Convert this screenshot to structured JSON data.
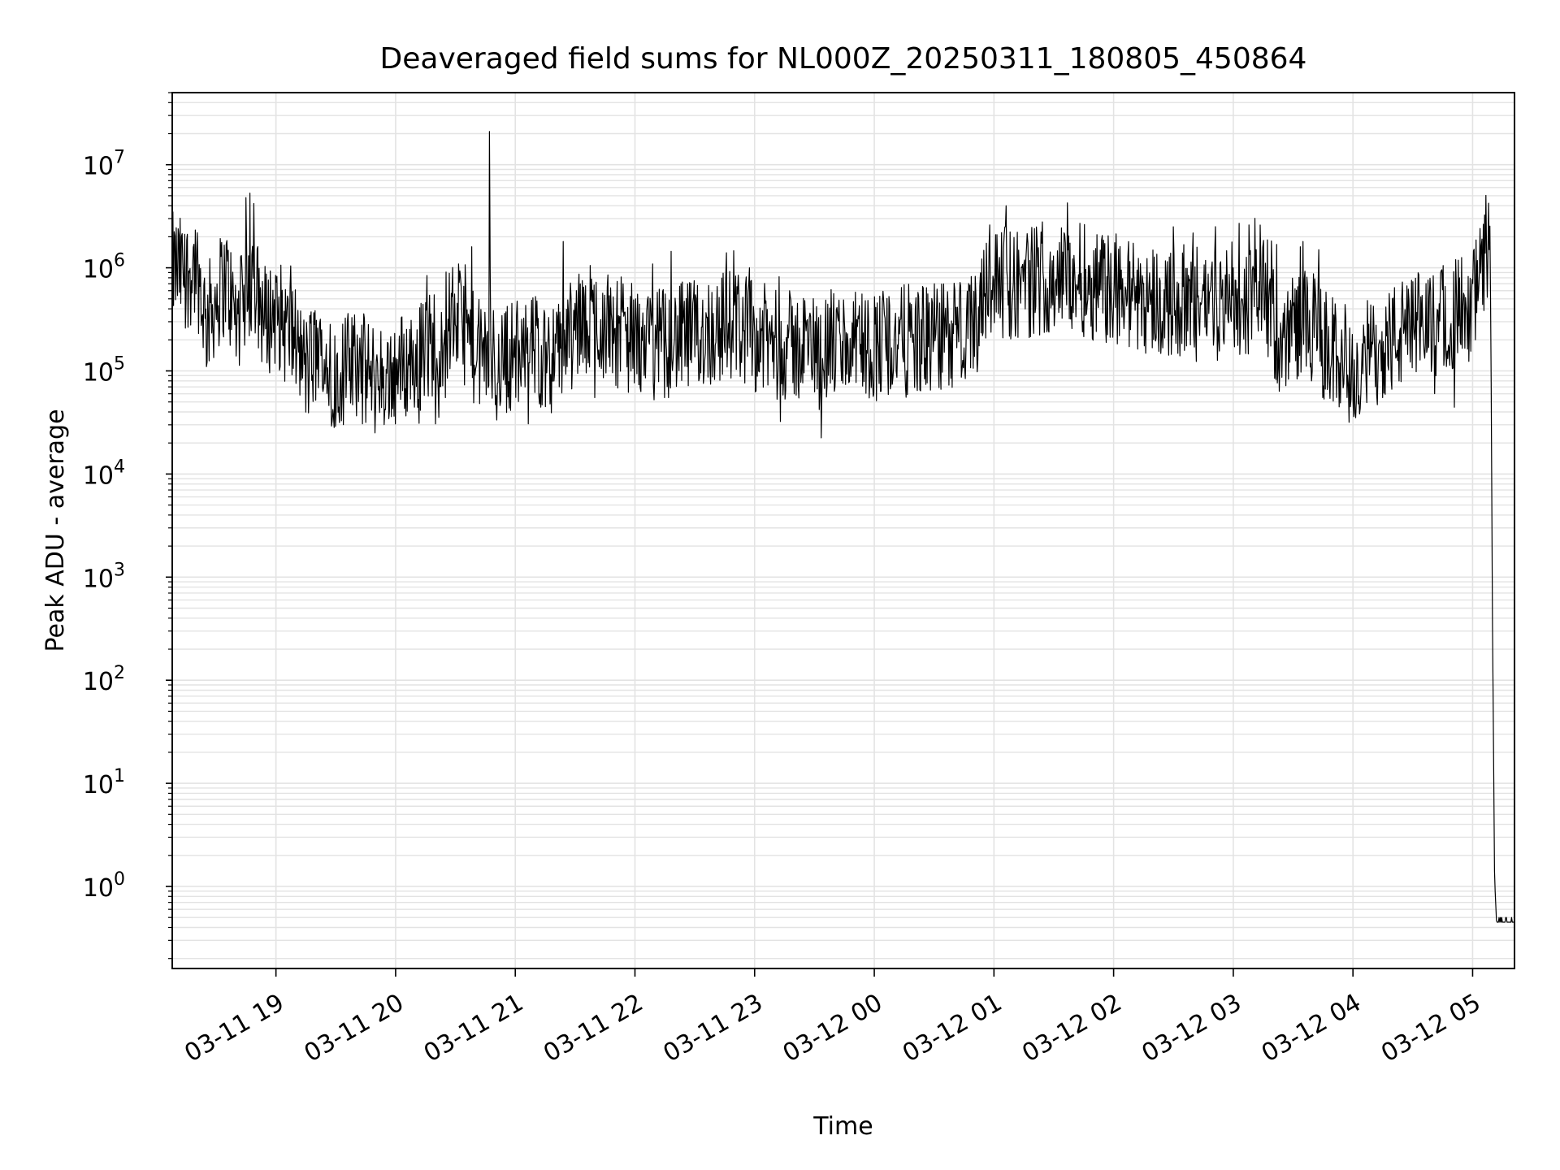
{
  "chart_data": {
    "type": "line",
    "title": "Deaveraged field sums for NL000Z_20250311_180805_450864",
    "xlabel": "Time",
    "ylabel": "Peak ADU - average",
    "yscale": "log",
    "ylim": [
      0.16,
      50000000
    ],
    "xlim": [
      "03-11 18:08",
      "03-12 05:21"
    ],
    "grid": true,
    "line_color": "#000000",
    "grid_color": "#e3e3e3",
    "xticks": [
      {
        "label": "03-11 19",
        "time": "03-11 19:00"
      },
      {
        "label": "03-11 20",
        "time": "03-11 20:00"
      },
      {
        "label": "03-11 21",
        "time": "03-11 21:00"
      },
      {
        "label": "03-11 22",
        "time": "03-11 22:00"
      },
      {
        "label": "03-11 23",
        "time": "03-11 23:00"
      },
      {
        "label": "03-12 00",
        "time": "03-12 00:00"
      },
      {
        "label": "03-12 01",
        "time": "03-12 01:00"
      },
      {
        "label": "03-12 02",
        "time": "03-12 02:00"
      },
      {
        "label": "03-12 03",
        "time": "03-12 03:00"
      },
      {
        "label": "03-12 04",
        "time": "03-12 04:00"
      },
      {
        "label": "03-12 05",
        "time": "03-12 05:00"
      }
    ],
    "yticks": [
      {
        "base": "10",
        "exp": "0",
        "value": 1
      },
      {
        "base": "10",
        "exp": "1",
        "value": 10
      },
      {
        "base": "10",
        "exp": "2",
        "value": 100
      },
      {
        "base": "10",
        "exp": "3",
        "value": 1000
      },
      {
        "base": "10",
        "exp": "4",
        "value": 10000
      },
      {
        "base": "10",
        "exp": "5",
        "value": 100000
      },
      {
        "base": "10",
        "exp": "6",
        "value": 1000000
      },
      {
        "base": "10",
        "exp": "7",
        "value": 10000000
      }
    ],
    "series": [
      {
        "points": [
          [
            "03-11 18:08",
            1000000
          ],
          [
            "03-11 18:15",
            850000
          ],
          [
            "03-11 18:20",
            1100000
          ],
          [
            "03-11 18:25",
            300000
          ],
          [
            "03-11 18:30",
            500000
          ],
          [
            "03-11 18:35",
            800000
          ],
          [
            "03-11 18:40",
            300000
          ],
          [
            "03-11 18:45",
            500000
          ],
          [
            "03-11 18:50",
            600000
          ],
          [
            "03-11 18:55",
            300000
          ],
          [
            "03-11 19:00",
            400000
          ],
          [
            "03-11 19:05",
            250000
          ],
          [
            "03-11 19:10",
            200000
          ],
          [
            "03-11 19:15",
            100000
          ],
          [
            "03-11 19:20",
            150000
          ],
          [
            "03-11 19:30",
            90000
          ],
          [
            "03-11 19:40",
            120000
          ],
          [
            "03-11 19:50",
            80000
          ],
          [
            "03-11 20:00",
            100000
          ],
          [
            "03-11 20:10",
            130000
          ],
          [
            "03-11 20:20",
            200000
          ],
          [
            "03-11 20:30",
            350000
          ],
          [
            "03-11 20:35",
            250000
          ],
          [
            "03-11 20:40",
            150000
          ],
          [
            "03-11 20:50",
            120000
          ],
          [
            "03-11 21:00",
            150000
          ],
          [
            "03-11 21:10",
            160000
          ],
          [
            "03-11 21:20",
            130000
          ],
          [
            "03-11 21:30",
            250000
          ],
          [
            "03-11 21:40",
            300000
          ],
          [
            "03-11 21:50",
            250000
          ],
          [
            "03-11 22:00",
            200000
          ],
          [
            "03-11 22:10",
            180000
          ],
          [
            "03-11 22:20",
            200000
          ],
          [
            "03-11 22:30",
            220000
          ],
          [
            "03-11 22:40",
            250000
          ],
          [
            "03-11 22:50",
            300000
          ],
          [
            "03-11 23:00",
            220000
          ],
          [
            "03-11 23:10",
            180000
          ],
          [
            "03-11 23:20",
            170000
          ],
          [
            "03-11 23:30",
            170000
          ],
          [
            "03-11 23:40",
            180000
          ],
          [
            "03-11 23:50",
            180000
          ],
          [
            "03-12 00:00",
            180000
          ],
          [
            "03-12 00:10",
            190000
          ],
          [
            "03-12 00:20",
            200000
          ],
          [
            "03-12 00:30",
            200000
          ],
          [
            "03-12 00:40",
            220000
          ],
          [
            "03-12 00:50",
            250000
          ],
          [
            "03-12 00:55",
            700000
          ],
          [
            "03-12 01:00",
            750000
          ],
          [
            "03-12 01:10",
            700000
          ],
          [
            "03-12 01:20",
            750000
          ],
          [
            "03-12 01:30",
            800000
          ],
          [
            "03-12 01:40",
            800000
          ],
          [
            "03-12 01:50",
            700000
          ],
          [
            "03-12 02:00",
            600000
          ],
          [
            "03-12 02:10",
            550000
          ],
          [
            "03-12 02:20",
            500000
          ],
          [
            "03-12 02:30",
            450000
          ],
          [
            "03-12 02:40",
            500000
          ],
          [
            "03-12 02:50",
            500000
          ],
          [
            "03-12 03:00",
            450000
          ],
          [
            "03-12 03:10",
            500000
          ],
          [
            "03-12 03:15",
            900000
          ],
          [
            "03-12 03:20",
            300000
          ],
          [
            "03-12 03:25",
            150000
          ],
          [
            "03-12 03:30",
            300000
          ],
          [
            "03-12 03:40",
            250000
          ],
          [
            "03-12 03:50",
            150000
          ],
          [
            "03-12 04:00",
            120000
          ],
          [
            "03-12 04:10",
            150000
          ],
          [
            "03-12 04:20",
            200000
          ],
          [
            "03-12 04:30",
            250000
          ],
          [
            "03-12 04:40",
            300000
          ],
          [
            "03-12 04:50",
            350000
          ],
          [
            "03-12 05:00",
            450000
          ],
          [
            "03-12 05:05",
            900000
          ],
          [
            "03-12 05:07",
            1900000
          ],
          [
            "03-12 05:09",
            1000000
          ],
          [
            "03-12 05:10",
            300
          ],
          [
            "03-12 05:11",
            1.2
          ],
          [
            "03-12 05:12",
            0.45
          ],
          [
            "03-12 05:21",
            0.45
          ]
        ],
        "spikes": [
          [
            "03-11 18:45",
            4800000
          ],
          [
            "03-11 18:47",
            5300000
          ],
          [
            "03-11 18:49",
            4200000
          ],
          [
            "03-11 20:38",
            1600000
          ],
          [
            "03-11 20:47",
            21000000
          ],
          [
            "03-11 21:24",
            1800000
          ],
          [
            "03-11 22:46",
            1400000
          ],
          [
            "03-12 00:58",
            2600000
          ],
          [
            "03-12 01:06",
            4000000
          ],
          [
            "03-12 01:43",
            2700000
          ],
          [
            "03-12 02:30",
            2500000
          ],
          [
            "03-12 03:03",
            2700000
          ],
          [
            "03-12 03:08",
            2600000
          ],
          [
            "03-12 03:35",
            1800000
          ],
          [
            "03-12 03:43",
            1500000
          ]
        ],
        "dips": [
          [
            "03-11 19:50",
            45000
          ],
          [
            "03-11 19:35",
            55000
          ],
          [
            "03-11 20:25",
            55000
          ],
          [
            "03-11 21:40",
            55000
          ],
          [
            "03-11 22:15",
            55000
          ],
          [
            "03-11 23:20",
            60000
          ],
          [
            "03-12 04:00",
            52000
          ],
          [
            "03-12 03:45",
            55000
          ],
          [
            "03-12 04:15",
            55000
          ]
        ]
      }
    ]
  }
}
